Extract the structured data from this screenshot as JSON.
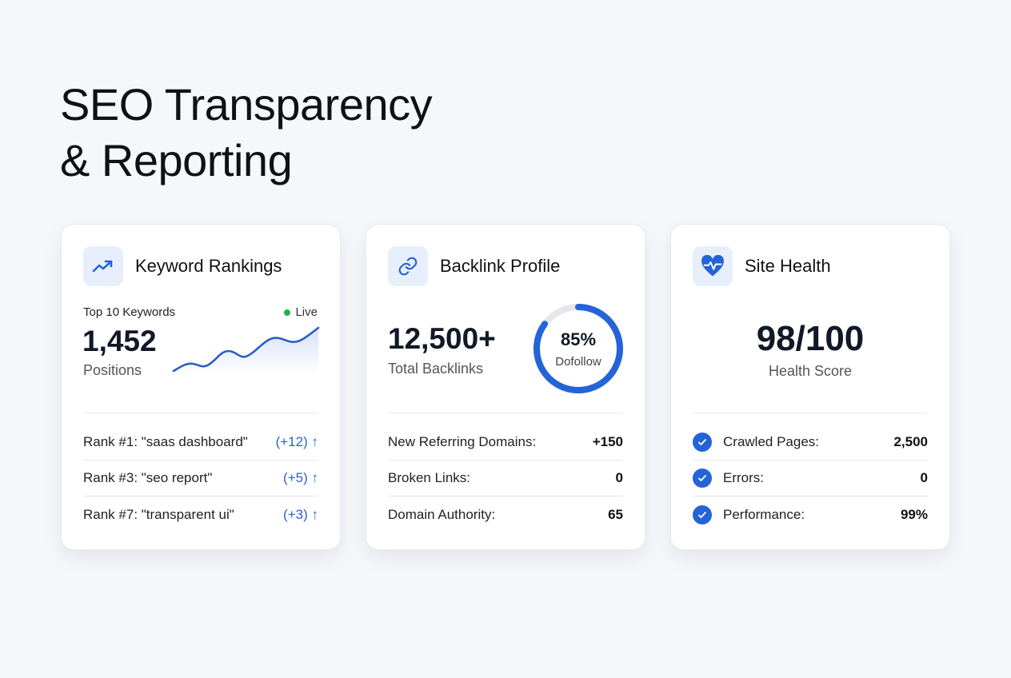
{
  "title_line1": "SEO Transparency",
  "title_line2": "& Reporting",
  "colors": {
    "accent": "#2563d8",
    "live": "#22b04b"
  },
  "keyword": {
    "title": "Keyword Rankings",
    "icon": "trending-up-icon",
    "subtitle": "Top 10 Keywords",
    "live": "Live",
    "value": "1,452",
    "unit": "Positions",
    "rows": [
      {
        "label": "Rank #1: \"saas dashboard\"",
        "change": "(+12)"
      },
      {
        "label": "Rank #3: \"seo report\"",
        "change": "(+5)"
      },
      {
        "label": "Rank #7: \"transparent ui\"",
        "change": "(+3)"
      }
    ]
  },
  "backlink": {
    "title": "Backlink Profile",
    "icon": "link-icon",
    "value": "12,500+",
    "unit": "Total Backlinks",
    "donut_percent": 85,
    "donut_value": "85%",
    "donut_label": "Dofollow",
    "rows": [
      {
        "label": "New Referring Domains:",
        "value": "+150"
      },
      {
        "label": "Broken Links:",
        "value": "0"
      },
      {
        "label": "Domain Authority:",
        "value": "65"
      }
    ]
  },
  "health": {
    "title": "Site Health",
    "icon": "heart-pulse-icon",
    "value": "98/100",
    "unit": "Health Score",
    "rows": [
      {
        "label": "Crawled Pages:",
        "value": "2,500"
      },
      {
        "label": "Errors:",
        "value": "0"
      },
      {
        "label": "Performance:",
        "value": "99%"
      }
    ]
  }
}
